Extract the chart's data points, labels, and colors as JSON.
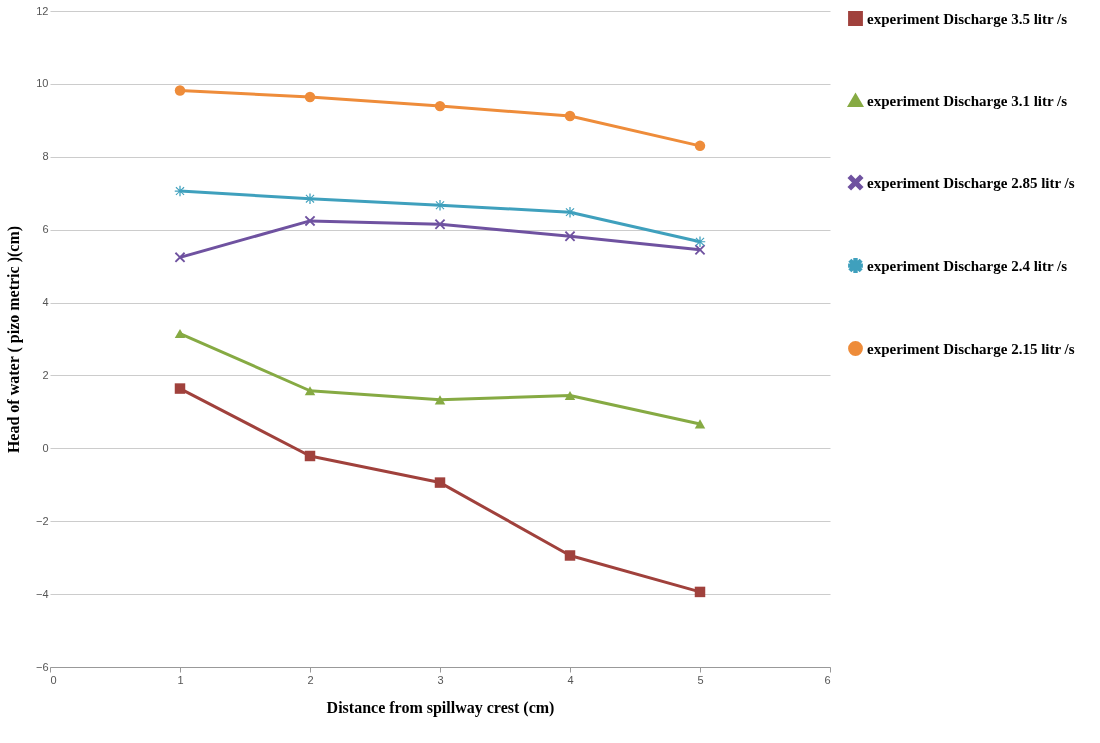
{
  "chart_data": {
    "type": "line",
    "xlabel": "Distance from spillway crest (cm)",
    "ylabel": "Head of water ( pizo metric )(cm)",
    "x": [
      1,
      2,
      3,
      4,
      5
    ],
    "series": [
      {
        "name": "experiment Discharge 3.5 litr /s",
        "color": "#a0413c",
        "marker": "square",
        "values": [
          1.64,
          -0.21,
          -0.94,
          -2.94,
          -3.94
        ]
      },
      {
        "name": "experiment Discharge 3.1 litr /s",
        "color": "#86aa43",
        "marker": "triangle",
        "values": [
          3.15,
          1.58,
          1.33,
          1.45,
          0.67
        ]
      },
      {
        "name": "experiment Discharge 2.85 litr /s",
        "color": "#6f52a0",
        "marker": "cross",
        "values": [
          5.24,
          6.24,
          6.15,
          5.82,
          5.45
        ]
      },
      {
        "name": "experiment Discharge 2.4 litr /s",
        "color": "#3fa0bd",
        "marker": "star",
        "values": [
          7.06,
          6.85,
          6.67,
          6.48,
          5.67
        ]
      },
      {
        "name": "experiment Discharge 2.15 litr /s",
        "color": "#ee8c3a",
        "marker": "circle",
        "values": [
          9.82,
          9.64,
          9.39,
          9.12,
          8.3
        ]
      }
    ],
    "xlim": [
      0,
      6
    ],
    "xticks": [
      0,
      1,
      2,
      3,
      4,
      5,
      6
    ],
    "ylim": [
      -6,
      12
    ],
    "yticks": [
      -6,
      -4,
      -2,
      0,
      2,
      4,
      6,
      8,
      10,
      12
    ],
    "grid": "y",
    "legend": "right",
    "line_style": "solid"
  }
}
